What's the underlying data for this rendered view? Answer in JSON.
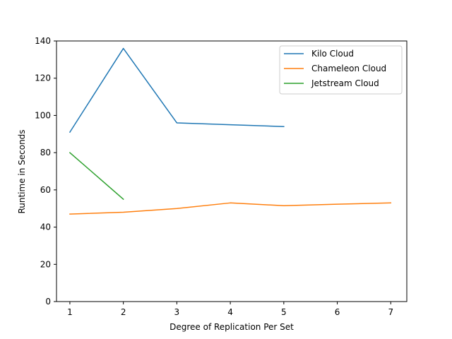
{
  "chart_data": {
    "type": "line",
    "xlabel": "Degree of Replication Per Set",
    "ylabel": "Runtime in Seconds",
    "xlim": [
      0.75,
      7.3
    ],
    "ylim": [
      0,
      140
    ],
    "xticks": [
      1,
      2,
      3,
      4,
      5,
      6,
      7
    ],
    "yticks": [
      0,
      20,
      40,
      60,
      80,
      100,
      120,
      140
    ],
    "grid": false,
    "legend_position": "top-right",
    "series": [
      {
        "name": "Kilo Cloud",
        "color": "#1f77b4",
        "x": [
          1,
          2,
          3,
          4,
          5
        ],
        "y": [
          91,
          136,
          96,
          95,
          94
        ]
      },
      {
        "name": "Chameleon Cloud",
        "color": "#ff7f0e",
        "x": [
          1,
          2,
          3,
          4,
          5,
          6,
          7
        ],
        "y": [
          47,
          48,
          50,
          53,
          51.5,
          52.3,
          53
        ]
      },
      {
        "name": "Jetstream Cloud",
        "color": "#2ca02c",
        "x": [
          1,
          2
        ],
        "y": [
          80,
          55
        ]
      }
    ]
  }
}
